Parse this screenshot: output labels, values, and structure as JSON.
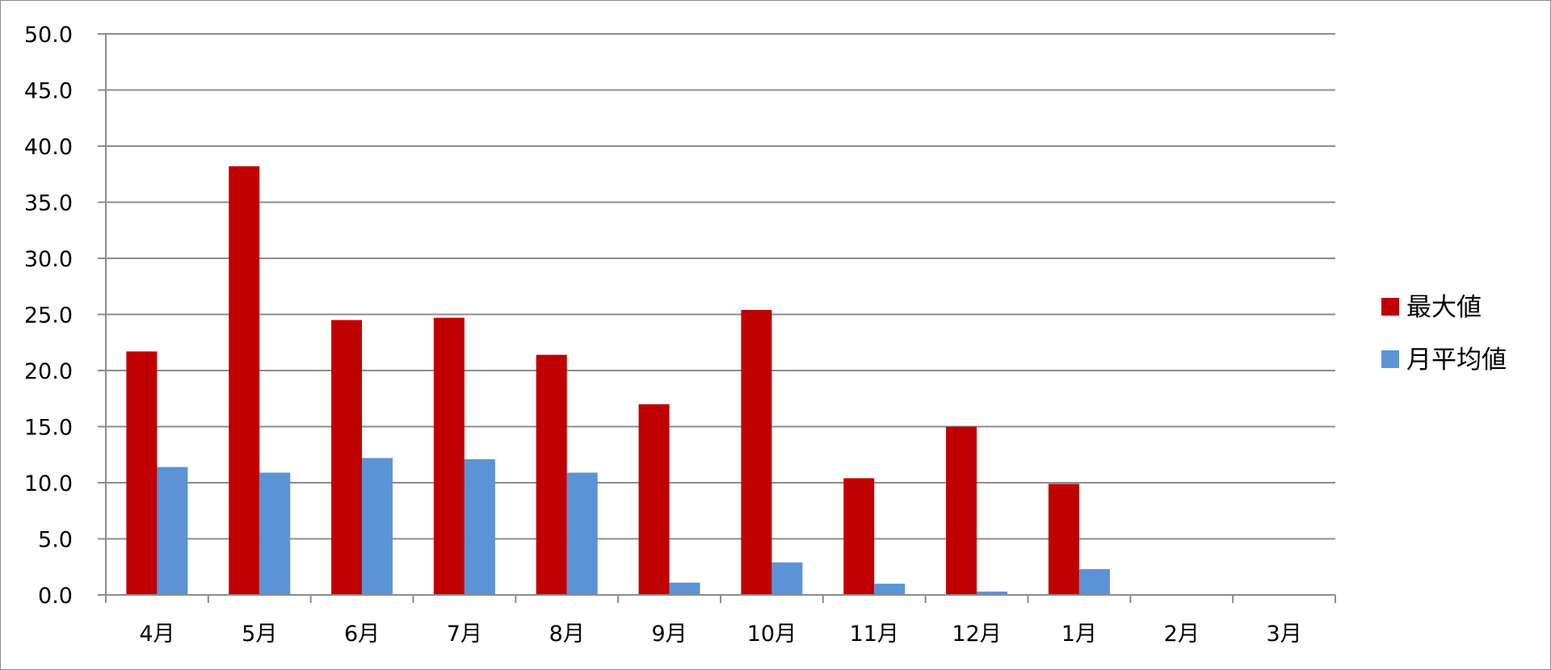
{
  "chart_data": {
    "type": "bar",
    "title": "",
    "xlabel": "",
    "ylabel": "",
    "categories": [
      "4月",
      "5月",
      "6月",
      "7月",
      "8月",
      "9月",
      "10月",
      "11月",
      "12月",
      "1月",
      "2月",
      "3月"
    ],
    "series": [
      {
        "name": "最大値",
        "color": "#c00000",
        "values": [
          21.7,
          38.2,
          24.5,
          24.7,
          21.4,
          17.0,
          25.4,
          10.4,
          15.0,
          9.9,
          null,
          null
        ]
      },
      {
        "name": "月平均値",
        "color": "#5b93d6",
        "values": [
          11.4,
          10.9,
          12.2,
          12.1,
          10.9,
          1.1,
          2.9,
          1.0,
          0.3,
          2.3,
          null,
          null
        ]
      }
    ],
    "ylim": [
      0,
      50
    ],
    "yticks": [
      "0.0",
      "5.0",
      "10.0",
      "15.0",
      "20.0",
      "25.0",
      "30.0",
      "35.0",
      "40.0",
      "45.0",
      "50.0"
    ],
    "grid": true,
    "legend_position": "right"
  }
}
